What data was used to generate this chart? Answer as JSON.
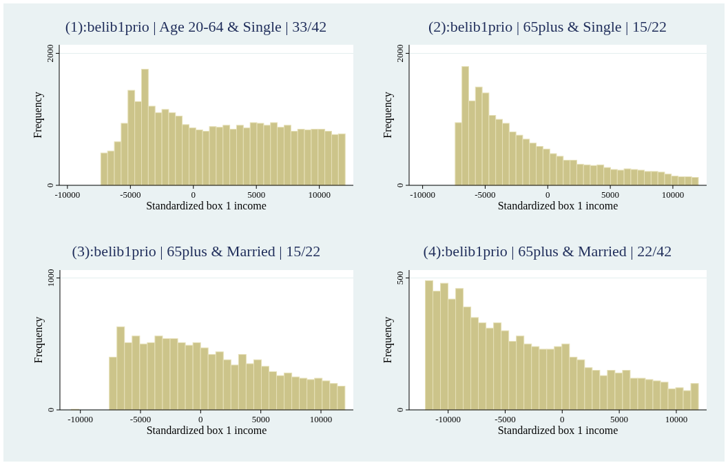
{
  "chart_data": [
    {
      "type": "histogram",
      "title": "(1):belib1prio | Age 20-64 & Single | 33/42",
      "xlabel": "Standardized box 1 income",
      "ylabel": "Frequency",
      "color": "#ccc48a",
      "grid": "y",
      "bins": [
        -7350,
        -6811,
        -6272,
        -5733,
        -5194,
        -4655,
        -4116,
        -3577,
        -3038,
        -2499,
        -1960,
        -1421,
        -882,
        -343,
        196,
        735,
        1274,
        1813,
        2352,
        2891,
        3430,
        3969,
        4508,
        5047,
        5586,
        6125,
        6664,
        7203,
        7742,
        8281,
        8820,
        9359,
        9898,
        10437,
        10976,
        11515,
        12054
      ],
      "values": [
        490,
        520,
        660,
        940,
        1440,
        1270,
        1760,
        1200,
        1100,
        1150,
        1100,
        1050,
        920,
        870,
        840,
        820,
        890,
        880,
        910,
        850,
        910,
        870,
        950,
        940,
        910,
        950,
        880,
        910,
        820,
        850,
        840,
        850,
        850,
        820,
        770,
        780
      ],
      "xlim": [
        -10650,
        12700
      ],
      "xticks": [
        -10000,
        -5000,
        0,
        5000,
        10000
      ],
      "ylim": [
        0,
        2130
      ],
      "yticks": [
        0,
        2000
      ]
    },
    {
      "type": "histogram",
      "title": "(2):belib1prio | 65plus & Single | 15/22",
      "xlabel": "Standardized box 1 income",
      "ylabel": "Frequency",
      "color": "#ccc48a",
      "grid": "y",
      "bins": [
        -7400,
        -6860,
        -6320,
        -5780,
        -5240,
        -4700,
        -4160,
        -3620,
        -3080,
        -2540,
        -2000,
        -1460,
        -920,
        -380,
        160,
        700,
        1240,
        1780,
        2320,
        2860,
        3400,
        3940,
        4480,
        5020,
        5560,
        6100,
        6640,
        7180,
        7720,
        8260,
        8800,
        9340,
        9880,
        10420,
        10960,
        11500,
        12040
      ],
      "values": [
        950,
        1800,
        1280,
        1490,
        1400,
        1060,
        1000,
        940,
        810,
        760,
        700,
        640,
        590,
        550,
        480,
        440,
        380,
        380,
        320,
        310,
        300,
        310,
        270,
        240,
        230,
        250,
        240,
        230,
        210,
        210,
        200,
        170,
        140,
        130,
        130,
        120
      ],
      "xlim": [
        -11080,
        12700
      ],
      "xticks": [
        -10000,
        -5000,
        0,
        5000,
        10000
      ],
      "ylim": [
        0,
        2130
      ],
      "yticks": [
        0,
        2000
      ]
    },
    {
      "type": "histogram",
      "title": "(3):belib1prio | 65plus & Married | 15/22",
      "xlabel": "Standardized box 1 income",
      "ylabel": "Frequency",
      "color": "#ccc48a",
      "grid": "y",
      "bins": [
        -10755,
        -10123,
        -9491,
        -8859,
        -8227,
        -7595,
        -6963,
        -6331,
        -5699,
        -5067,
        -4435,
        -3803,
        -3171,
        -2539,
        -1907,
        -1275,
        -643,
        -11,
        621,
        1253,
        1885,
        2517,
        3149,
        3781,
        4413,
        5045,
        5677,
        6309,
        6941,
        7573,
        8205,
        8837,
        9469,
        10101,
        10733,
        11365,
        11997
      ],
      "values": [
        5,
        0,
        0,
        0,
        0,
        400,
        630,
        510,
        560,
        500,
        510,
        560,
        540,
        540,
        510,
        490,
        510,
        470,
        420,
        440,
        380,
        340,
        420,
        350,
        380,
        330,
        290,
        260,
        280,
        250,
        240,
        230,
        240,
        220,
        200,
        180
      ],
      "xlim": [
        -11700,
        12690
      ],
      "xticks": [
        -10000,
        -5000,
        0,
        5000,
        10000
      ],
      "ylim": [
        0,
        1060
      ],
      "yticks": [
        0,
        1000
      ]
    },
    {
      "type": "histogram",
      "title": "(4):belib1prio | 65plus & Married | 22/42",
      "xlabel": "Standardized box 1 income",
      "ylabel": "Frequency",
      "color": "#ccc48a",
      "grid": "y",
      "bins": [
        -12000,
        -11335,
        -10670,
        -10005,
        -9340,
        -8675,
        -8010,
        -7345,
        -6680,
        -6015,
        -5350,
        -4685,
        -4020,
        -3355,
        -2690,
        -2025,
        -1360,
        -695,
        -30,
        635,
        1300,
        1965,
        2630,
        3295,
        3960,
        4625,
        5290,
        5955,
        6620,
        7285,
        7950,
        8615,
        9280,
        9945,
        10610,
        11275,
        11940
      ],
      "values": [
        490,
        450,
        480,
        420,
        460,
        390,
        350,
        330,
        310,
        330,
        300,
        260,
        280,
        250,
        240,
        230,
        230,
        240,
        250,
        200,
        190,
        160,
        150,
        130,
        150,
        140,
        150,
        120,
        120,
        115,
        110,
        105,
        80,
        84,
        73,
        100
      ],
      "xlim": [
        -13420,
        12660
      ],
      "xticks": [
        -10000,
        -5000,
        0,
        5000,
        10000
      ],
      "ylim": [
        0,
        530
      ],
      "yticks": [
        0,
        500
      ]
    }
  ]
}
